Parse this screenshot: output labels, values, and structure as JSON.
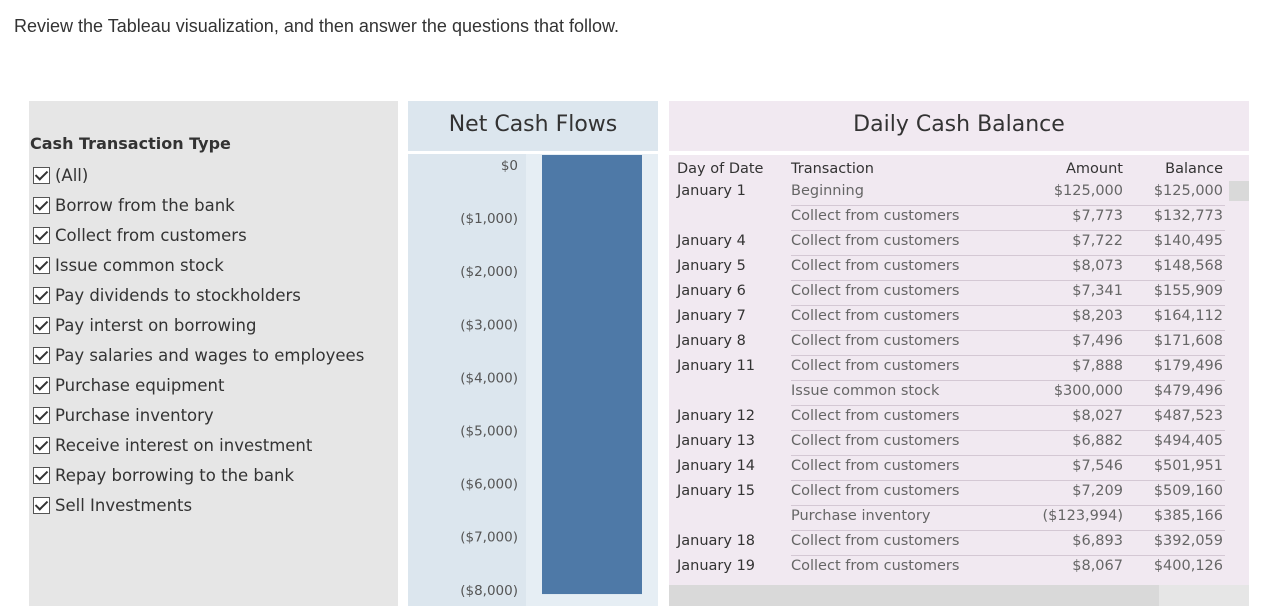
{
  "instruction": "Review the Tableau visualization, and then answer the questions that follow.",
  "filter": {
    "title": "Cash Transaction Type",
    "items": [
      {
        "label": "(All)",
        "checked": true
      },
      {
        "label": "Borrow from the bank",
        "checked": true
      },
      {
        "label": "Collect from customers",
        "checked": true
      },
      {
        "label": "Issue common stock",
        "checked": true
      },
      {
        "label": "Pay dividends to stockholders",
        "checked": true
      },
      {
        "label": "Pay interst on borrowing",
        "checked": true
      },
      {
        "label": "Pay salaries and wages to employees",
        "checked": true
      },
      {
        "label": "Purchase equipment",
        "checked": true
      },
      {
        "label": "Purchase inventory",
        "checked": true
      },
      {
        "label": "Receive interest on investment",
        "checked": true
      },
      {
        "label": "Repay borrowing to the bank",
        "checked": true
      },
      {
        "label": "Sell Investments",
        "checked": true
      }
    ]
  },
  "net_cash_flows": {
    "title": "Net Cash Flows",
    "bar_color": "#4e79a7"
  },
  "chart_data": {
    "type": "bar",
    "title": "Net Cash Flows",
    "categories": [
      ""
    ],
    "values": [
      -8080
    ],
    "ylim": [
      -8500,
      0
    ],
    "yticks": [
      0,
      -1000,
      -2000,
      -3000,
      -4000,
      -5000,
      -6000,
      -7000,
      -8000
    ],
    "yticklabels": [
      "$0",
      "($1,000)",
      "($2,000)",
      "($3,000)",
      "($4,000)",
      "($5,000)",
      "($6,000)",
      "($7,000)",
      "($8,000)"
    ],
    "grid": false
  },
  "daily_cash_balance": {
    "title": "Daily Cash Balance",
    "columns": {
      "day": "Day of Date",
      "transaction": "Transaction",
      "amount": "Amount",
      "balance": "Balance"
    },
    "rows": [
      {
        "day": "January 1",
        "transaction": "Beginning",
        "amount": "$125,000",
        "balance": "$125,000"
      },
      {
        "day": "",
        "transaction": "Collect from customers",
        "amount": "$7,773",
        "balance": "$132,773"
      },
      {
        "day": "January 4",
        "transaction": "Collect from customers",
        "amount": "$7,722",
        "balance": "$140,495"
      },
      {
        "day": "January 5",
        "transaction": "Collect from customers",
        "amount": "$8,073",
        "balance": "$148,568"
      },
      {
        "day": "January 6",
        "transaction": "Collect from customers",
        "amount": "$7,341",
        "balance": "$155,909"
      },
      {
        "day": "January 7",
        "transaction": "Collect from customers",
        "amount": "$8,203",
        "balance": "$164,112"
      },
      {
        "day": "January 8",
        "transaction": "Collect from customers",
        "amount": "$7,496",
        "balance": "$171,608"
      },
      {
        "day": "January 11",
        "transaction": "Collect from customers",
        "amount": "$7,888",
        "balance": "$179,496"
      },
      {
        "day": "",
        "transaction": "Issue common stock",
        "amount": "$300,000",
        "balance": "$479,496"
      },
      {
        "day": "January 12",
        "transaction": "Collect from customers",
        "amount": "$8,027",
        "balance": "$487,523"
      },
      {
        "day": "January 13",
        "transaction": "Collect from customers",
        "amount": "$6,882",
        "balance": "$494,405"
      },
      {
        "day": "January 14",
        "transaction": "Collect from customers",
        "amount": "$7,546",
        "balance": "$501,951"
      },
      {
        "day": "January 15",
        "transaction": "Collect from customers",
        "amount": "$7,209",
        "balance": "$509,160"
      },
      {
        "day": "",
        "transaction": "Purchase inventory",
        "amount": "($123,994)",
        "balance": "$385,166"
      },
      {
        "day": "January 18",
        "transaction": "Collect from customers",
        "amount": "$6,893",
        "balance": "$392,059"
      },
      {
        "day": "January 19",
        "transaction": "Collect from customers",
        "amount": "$8,067",
        "balance": "$400,126"
      }
    ]
  }
}
